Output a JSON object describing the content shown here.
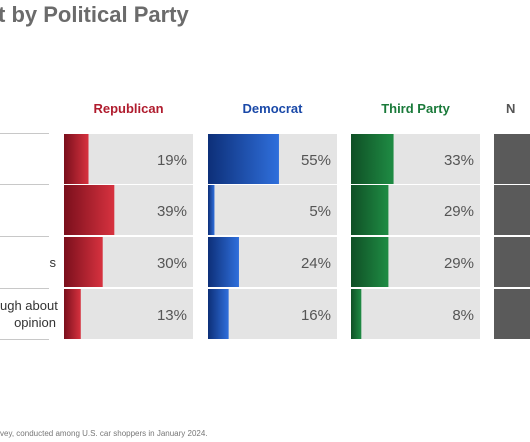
{
  "title": "t by Political Party",
  "footnote": "vey, conducted among U.S. car shoppers in January 2024.",
  "chart_data": {
    "type": "bar",
    "title": "t by Political Party",
    "categories": [
      "",
      "",
      "s",
      "ugh about\nopinion"
    ],
    "series": [
      {
        "name": "Republican",
        "values": [
          19,
          39,
          30,
          13
        ],
        "color": "#b01c2e"
      },
      {
        "name": "Democrat",
        "values": [
          55,
          5,
          24,
          16
        ],
        "color": "#1a49a8"
      },
      {
        "name": "Third Party",
        "values": [
          33,
          29,
          29,
          8
        ],
        "color": "#1a7a3a"
      },
      {
        "name": "N",
        "values": [
          null,
          null,
          null,
          null
        ],
        "color": "#555555"
      }
    ],
    "value_suffix": "%",
    "ylim": [
      0,
      100
    ],
    "grid": false,
    "legend": "column headers"
  }
}
